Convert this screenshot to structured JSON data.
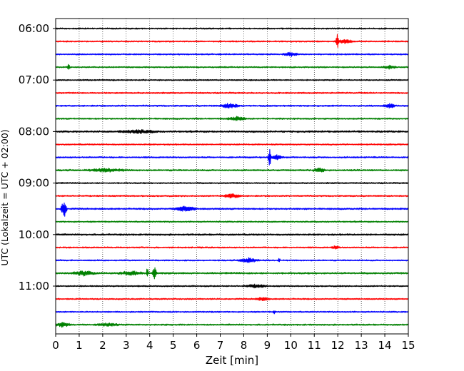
{
  "chart_data": {
    "type": "line",
    "title": "",
    "xlabel": "Zeit  [min]",
    "ylabel": "UTC (Lokalzeit = UTC + 02:00)",
    "xlim": [
      0,
      15
    ],
    "x_ticks": [
      0,
      1,
      2,
      3,
      4,
      5,
      6,
      7,
      8,
      9,
      10,
      11,
      12,
      13,
      14,
      15
    ],
    "x_tick_labels": [
      "0",
      "1",
      "2",
      "3",
      "4",
      "5",
      "6",
      "7",
      "8",
      "9",
      "10",
      "11",
      "12",
      "13",
      "14",
      "15"
    ],
    "y_tick_labels": [
      "06:00",
      "07:00",
      "08:00",
      "09:00",
      "10:00",
      "11:00"
    ],
    "grid": "vertical dotted lines at each minute",
    "trace_minutes_per_line": 15,
    "color_cycle": [
      "#000000",
      "#ff0000",
      "#0000ff",
      "#008000"
    ],
    "traces": [
      {
        "start": "06:00",
        "color": "#000000",
        "noise": 1.0,
        "events": []
      },
      {
        "start": "06:15",
        "color": "#ff0000",
        "noise": 1.0,
        "events": [
          {
            "t": 11.98,
            "amp": 11,
            "dur": 0.08
          },
          {
            "t": 12.3,
            "amp": 2.5,
            "dur": 0.4
          }
        ]
      },
      {
        "start": "06:30",
        "color": "#0000ff",
        "noise": 1.0,
        "events": [
          {
            "t": 10.0,
            "amp": 2.5,
            "dur": 0.4
          }
        ]
      },
      {
        "start": "06:45",
        "color": "#008000",
        "noise": 1.0,
        "events": [
          {
            "t": 0.55,
            "amp": 7,
            "dur": 0.06
          },
          {
            "t": 14.2,
            "amp": 2,
            "dur": 0.4
          }
        ]
      },
      {
        "start": "07:00",
        "color": "#000000",
        "noise": 1.0,
        "events": []
      },
      {
        "start": "07:15",
        "color": "#ff0000",
        "noise": 1.1,
        "events": []
      },
      {
        "start": "07:30",
        "color": "#0000ff",
        "noise": 1.1,
        "events": [
          {
            "t": 7.4,
            "amp": 3,
            "dur": 0.5
          },
          {
            "t": 14.2,
            "amp": 3,
            "dur": 0.3
          }
        ]
      },
      {
        "start": "07:45",
        "color": "#008000",
        "noise": 1.1,
        "events": [
          {
            "t": 7.7,
            "amp": 2.2,
            "dur": 0.5
          }
        ]
      },
      {
        "start": "08:00",
        "color": "#000000",
        "noise": 1.3,
        "events": [
          {
            "t": 3.5,
            "amp": 2,
            "dur": 1.0
          }
        ]
      },
      {
        "start": "08:15",
        "color": "#ff0000",
        "noise": 1.0,
        "events": []
      },
      {
        "start": "08:30",
        "color": "#0000ff",
        "noise": 1.1,
        "events": [
          {
            "t": 9.1,
            "amp": 16,
            "dur": 0.08
          },
          {
            "t": 9.4,
            "amp": 3,
            "dur": 0.3
          }
        ]
      },
      {
        "start": "08:45",
        "color": "#008000",
        "noise": 1.2,
        "events": [
          {
            "t": 2.2,
            "amp": 2,
            "dur": 1.0
          },
          {
            "t": 11.2,
            "amp": 3,
            "dur": 0.3
          }
        ]
      },
      {
        "start": "09:00",
        "color": "#000000",
        "noise": 1.0,
        "events": []
      },
      {
        "start": "09:15",
        "color": "#ff0000",
        "noise": 1.1,
        "events": [
          {
            "t": 7.5,
            "amp": 2.5,
            "dur": 0.5
          }
        ]
      },
      {
        "start": "09:30",
        "color": "#0000ff",
        "noise": 1.2,
        "events": [
          {
            "t": 0.35,
            "amp": 13,
            "dur": 0.15
          },
          {
            "t": 5.5,
            "amp": 3,
            "dur": 0.6
          }
        ]
      },
      {
        "start": "09:45",
        "color": "#008000",
        "noise": 1.0,
        "events": []
      },
      {
        "start": "10:00",
        "color": "#000000",
        "noise": 1.2,
        "events": []
      },
      {
        "start": "10:15",
        "color": "#ff0000",
        "noise": 1.0,
        "events": [
          {
            "t": 11.9,
            "amp": 2,
            "dur": 0.2
          }
        ]
      },
      {
        "start": "10:30",
        "color": "#0000ff",
        "noise": 1.0,
        "events": [
          {
            "t": 8.2,
            "amp": 3,
            "dur": 0.5
          },
          {
            "t": 9.5,
            "amp": 5,
            "dur": 0.05
          }
        ]
      },
      {
        "start": "10:45",
        "color": "#008000",
        "noise": 1.3,
        "events": [
          {
            "t": 1.2,
            "amp": 3,
            "dur": 0.6
          },
          {
            "t": 3.2,
            "amp": 2.5,
            "dur": 0.6
          },
          {
            "t": 3.9,
            "amp": 9,
            "dur": 0.05
          },
          {
            "t": 4.2,
            "amp": 9,
            "dur": 0.12
          }
        ]
      },
      {
        "start": "11:00",
        "color": "#000000",
        "noise": 1.0,
        "events": [
          {
            "t": 8.5,
            "amp": 2,
            "dur": 0.6
          }
        ]
      },
      {
        "start": "11:15",
        "color": "#ff0000",
        "noise": 1.0,
        "events": [
          {
            "t": 8.8,
            "amp": 2,
            "dur": 0.4
          }
        ]
      },
      {
        "start": "11:30",
        "color": "#0000ff",
        "noise": 1.0,
        "events": [
          {
            "t": 9.3,
            "amp": 4,
            "dur": 0.05
          }
        ]
      },
      {
        "start": "11:45",
        "color": "#008000",
        "noise": 1.1,
        "events": [
          {
            "t": 0.3,
            "amp": 3,
            "dur": 0.4
          },
          {
            "t": 2.2,
            "amp": 2,
            "dur": 0.6
          }
        ]
      }
    ]
  }
}
